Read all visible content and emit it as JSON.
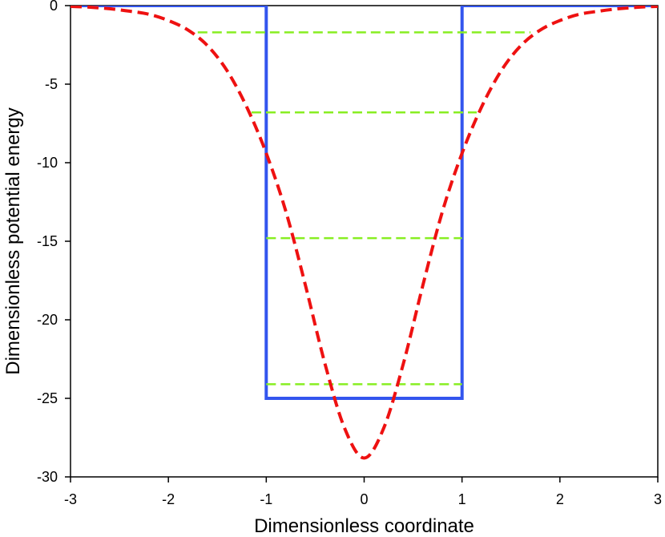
{
  "chart_data": {
    "type": "line",
    "xlabel": "Dimensionless coordinate",
    "ylabel": "Dimensionless potential energy",
    "xlim": [
      -3,
      3
    ],
    "ylim": [
      -30,
      0
    ],
    "xticks": [
      -3,
      -2,
      -1,
      0,
      1,
      2,
      3
    ],
    "yticks": [
      0,
      -5,
      -10,
      -15,
      -20,
      -25,
      -30
    ],
    "grid": false,
    "legend": "none",
    "series": [
      {
        "style": "solid",
        "color": "#3355ee",
        "x": [
          -3,
          -1,
          -1,
          1,
          1,
          3
        ],
        "y": [
          0,
          0,
          -25,
          -25,
          0,
          0
        ]
      },
      {
        "style": "dashed",
        "color": "#ee1111",
        "x": [
          -3.0,
          -2.8,
          -2.6,
          -2.4,
          -2.2,
          -2.0,
          -1.8,
          -1.6,
          -1.4,
          -1.2,
          -1.0,
          -0.8,
          -0.6,
          -0.4,
          -0.2,
          0.0,
          0.2,
          0.4,
          0.6,
          0.8,
          1.0,
          1.2,
          1.4,
          1.6,
          1.8,
          2.0,
          2.2,
          2.4,
          2.6,
          2.8,
          3.0
        ],
        "y": [
          -0.05,
          -0.1,
          -0.2,
          -0.35,
          -0.55,
          -0.95,
          -1.55,
          -2.55,
          -4.15,
          -6.45,
          -9.4,
          -13.1,
          -17.8,
          -22.8,
          -26.9,
          -28.8,
          -26.9,
          -22.8,
          -17.8,
          -13.1,
          -9.4,
          -6.45,
          -4.15,
          -2.55,
          -1.55,
          -0.95,
          -0.55,
          -0.35,
          -0.2,
          -0.1,
          -0.05
        ]
      }
    ],
    "energy_levels": [
      {
        "y": -1.7,
        "x_range": [
          -1.7,
          1.7
        ]
      },
      {
        "y": -6.8,
        "x_range": [
          -1.15,
          1.15
        ]
      },
      {
        "y": -14.8,
        "x_range": [
          -1.0,
          1.0
        ]
      },
      {
        "y": -24.1,
        "x_range": [
          -1.0,
          1.0
        ]
      }
    ],
    "energy_level_color": "#88ee22"
  }
}
